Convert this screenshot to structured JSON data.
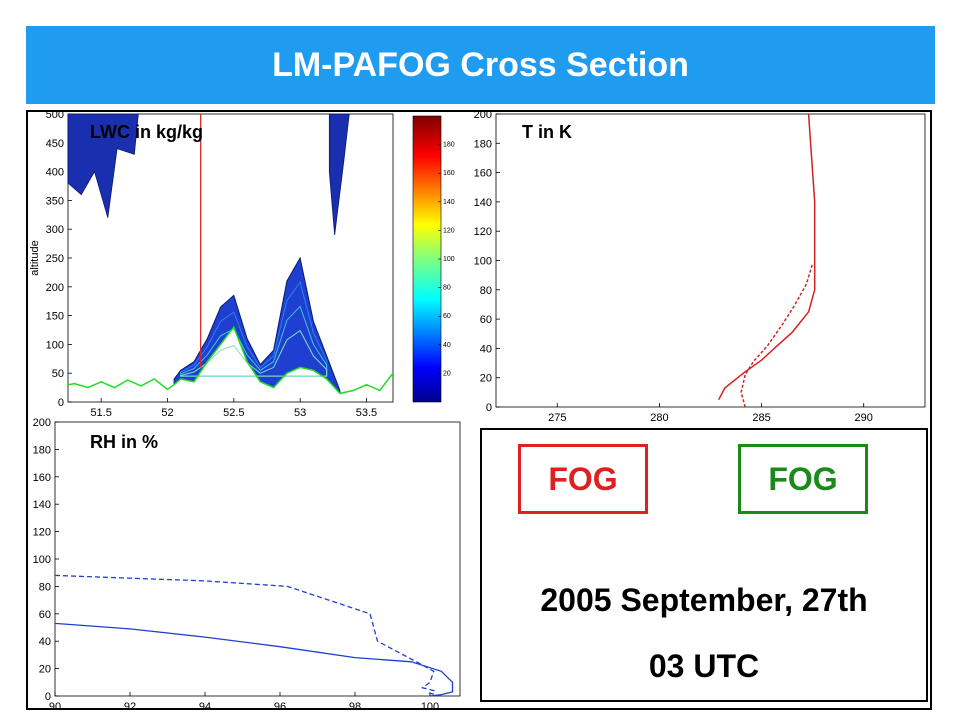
{
  "title": "LM-PAFOG Cross Section",
  "chart_data": [
    {
      "type": "heatmap",
      "label": "LWC in kg/kg",
      "ylabel": "altitude",
      "xlim": [
        51.25,
        53.7
      ],
      "ylim": [
        0,
        500
      ],
      "xticks": [
        51.5,
        52,
        52.5,
        53,
        53.5
      ],
      "yticks": [
        0,
        50,
        100,
        150,
        200,
        250,
        300,
        350,
        400,
        450,
        500
      ],
      "colorbar": {
        "min": 0,
        "max": 200,
        "ticks": [
          20,
          40,
          60,
          80,
          100,
          120,
          140,
          160,
          180
        ]
      },
      "marker_x": 52.25,
      "terrain": {
        "x": [
          51.25,
          51.3,
          51.4,
          51.5,
          51.6,
          51.7,
          51.8,
          51.9,
          52.0,
          52.05,
          52.1,
          52.2,
          52.3,
          52.4,
          52.5,
          52.6,
          52.7,
          52.8,
          52.9,
          53.0,
          53.1,
          53.2,
          53.3,
          53.4,
          53.5,
          53.6,
          53.7
        ],
        "y": [
          30,
          32,
          25,
          35,
          25,
          38,
          28,
          40,
          22,
          30,
          40,
          35,
          70,
          100,
          130,
          70,
          35,
          25,
          50,
          60,
          55,
          40,
          15,
          20,
          30,
          20,
          50
        ]
      },
      "fog_top": {
        "x": [
          52.05,
          52.1,
          52.2,
          52.3,
          52.4,
          52.5,
          52.6,
          52.7,
          52.8,
          52.9,
          53.0,
          53.1,
          53.2,
          53.3
        ],
        "y": [
          40,
          55,
          70,
          110,
          165,
          185,
          110,
          65,
          90,
          210,
          250,
          140,
          80,
          20
        ]
      },
      "upper_clouds": {
        "x": [
          51.25,
          51.35,
          51.45,
          51.55,
          51.7,
          51.72,
          53.2,
          53.25,
          53.3,
          53.35
        ],
        "y": [
          370,
          390,
          430,
          320,
          430,
          490,
          290,
          380,
          470,
          500
        ]
      }
    },
    {
      "type": "line",
      "label": "T in K",
      "xlim": [
        272,
        293
      ],
      "ylim": [
        0,
        200
      ],
      "xticks": [
        275,
        280,
        285,
        290
      ],
      "yticks": [
        0,
        20,
        40,
        60,
        80,
        100,
        120,
        140,
        160,
        180,
        200
      ],
      "series": [
        {
          "style": "solid",
          "x": [
            282.9,
            283.2,
            284.1,
            285.0,
            285.7,
            286.5,
            287.3,
            287.6,
            287.6,
            287.4,
            287.3
          ],
          "y": [
            5,
            13,
            23,
            32,
            41,
            51,
            65,
            80,
            140,
            180,
            200
          ]
        },
        {
          "style": "dashed",
          "x": [
            284.2,
            284.0,
            284.2,
            284.6,
            285.3,
            286.0,
            286.6,
            287.2,
            287.5
          ],
          "y": [
            0,
            10,
            22,
            31,
            42,
            56,
            69,
            84,
            98
          ]
        }
      ]
    },
    {
      "type": "line",
      "label": "RH in %",
      "xlim": [
        90,
        100.8
      ],
      "ylim": [
        0,
        200
      ],
      "xticks": [
        90,
        92,
        94,
        96,
        98,
        100
      ],
      "yticks": [
        0,
        20,
        40,
        60,
        80,
        100,
        120,
        140,
        160,
        180,
        200
      ],
      "series": [
        {
          "style": "solid",
          "x": [
            90,
            92,
            94,
            96,
            98,
            99.5,
            100.3,
            100.6,
            100.6,
            100.3,
            100.0
          ],
          "y": [
            53,
            49,
            43,
            36,
            28,
            25,
            18,
            10,
            3,
            1,
            0
          ]
        },
        {
          "style": "dashed",
          "x": [
            90,
            92,
            94,
            96.2,
            98.4,
            98.6,
            99.7,
            100.1,
            100.0,
            99.8,
            100.1,
            100.0,
            100.3
          ],
          "y": [
            88,
            86,
            84,
            80,
            60,
            40,
            24,
            18,
            10,
            6,
            4,
            2,
            0
          ]
        }
      ]
    }
  ],
  "info": {
    "fog_left": "FOG",
    "fog_right": "FOG",
    "date": "2005 September, 27th",
    "time": "03 UTC",
    "fog_left_color": "#e02020",
    "fog_right_color": "#1a8a1a"
  }
}
